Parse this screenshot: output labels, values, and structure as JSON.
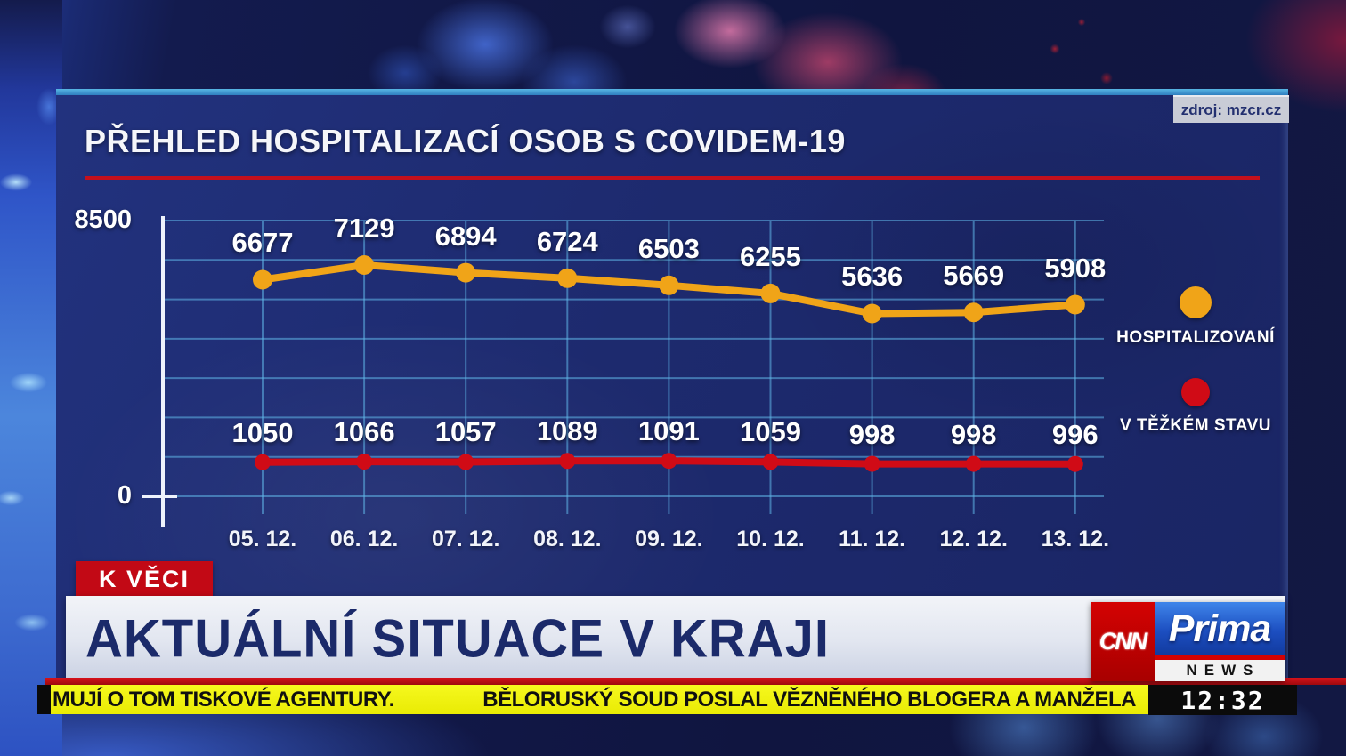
{
  "source_label": "zdroj: mzcr.cz",
  "title": "PŘEHLED HOSPITALIZACÍ OSOB S COVIDEM-19",
  "chart_data": {
    "type": "line",
    "categories": [
      "05. 12.",
      "06. 12.",
      "07. 12.",
      "08. 12.",
      "09. 12.",
      "10. 12.",
      "11. 12.",
      "12. 12.",
      "13. 12."
    ],
    "series": [
      {
        "name": "HOSPITALIZOVANÍ",
        "color": "#f0a418",
        "values": [
          6677,
          7129,
          6894,
          6724,
          6503,
          6255,
          5636,
          5669,
          5908
        ]
      },
      {
        "name": "V TĚŽKÉM STAVU",
        "color": "#d00b16",
        "values": [
          1050,
          1066,
          1057,
          1089,
          1091,
          1059,
          998,
          998,
          996
        ]
      }
    ],
    "ylim": [
      0,
      8500
    ],
    "y_axis_labels": [
      "8500",
      "0"
    ],
    "grid": true,
    "legend_position": "right",
    "title": "PŘEHLED HOSPITALIZACÍ OSOB S COVIDEM-19"
  },
  "lower_third": {
    "kicker": "K VĚCI",
    "headline": "AKTUÁLNÍ SITUACE V KRAJI"
  },
  "logo": {
    "cnn": "CNN",
    "prima": "Prima",
    "news": "NEWS"
  },
  "ticker": {
    "items": [
      "MUJÍ O TOM TISKOVÉ AGENTURY.",
      "BĚLORUSKÝ SOUD POSLAL VĚZNĚNÉHO BLOGERA A MANŽELA"
    ],
    "time": "12:32"
  },
  "colors": {
    "panel_navy": "#1d2a6e",
    "accent_red": "#c4101c",
    "ticker_yellow": "#eef006",
    "series_orange": "#f0a418",
    "series_red": "#d00b16"
  }
}
